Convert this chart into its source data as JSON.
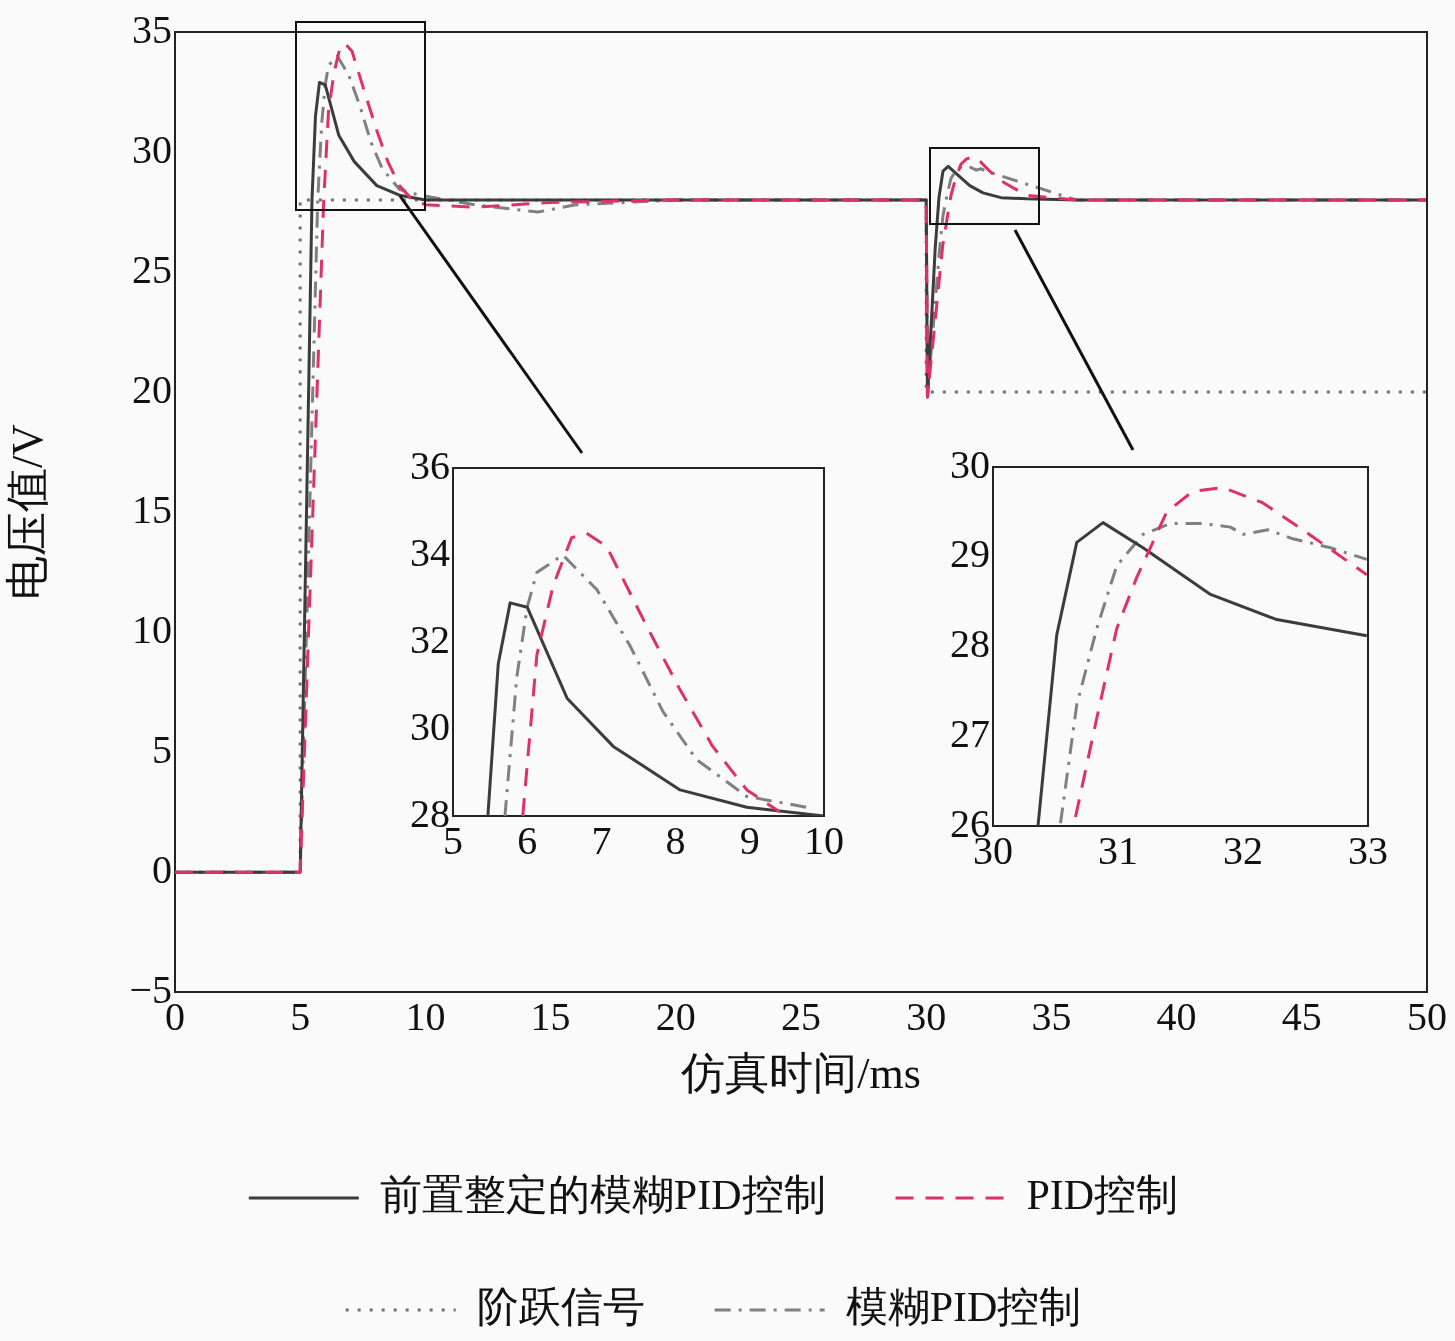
{
  "chart_data": [
    {
      "type": "line",
      "xlabel": "仿真时间/ms",
      "ylabel": "电压值/V",
      "xlim": [
        0,
        50
      ],
      "xticks": [
        0,
        5,
        10,
        15,
        20,
        25,
        30,
        35,
        40,
        45,
        50
      ],
      "ylim": [
        -5,
        35
      ],
      "yticks": [
        {
          "value": -5,
          "label": "−5"
        },
        0,
        5,
        10,
        15,
        20,
        25,
        30,
        35
      ],
      "grid": false,
      "legend": "bottom",
      "marker": "none",
      "series": [
        {
          "name": "前置整定的模糊PID控制",
          "color": "#3c3c3c",
          "line_style": "solid",
          "x": [
            0,
            5,
            5.47,
            5.61,
            5.77,
            6.0,
            6.54,
            7.16,
            8.06,
            8.96,
            10,
            20,
            30,
            30.05,
            30.36,
            30.51,
            30.67,
            30.88,
            31.2,
            31.74,
            32.27,
            32.99,
            34,
            36,
            50
          ],
          "values": [
            0,
            0,
            28,
            31.5,
            32.9,
            32.8,
            30.7,
            29.6,
            28.6,
            28.2,
            28,
            28,
            28,
            19.8,
            26,
            28.1,
            29.2,
            29.4,
            29.1,
            28.6,
            28.3,
            28.1,
            28.05,
            28,
            28
          ]
        },
        {
          "name": "PID控制",
          "color": "#e0306a",
          "line_style": "dashed",
          "x": [
            0,
            5,
            5.94,
            6.13,
            6.35,
            6.6,
            6.8,
            7.07,
            7.6,
            8.06,
            8.5,
            8.96,
            9.4,
            10,
            12,
            15,
            20,
            30,
            30.05,
            30.66,
            30.83,
            30.99,
            31.15,
            31.39,
            31.6,
            31.84,
            32.16,
            32.54,
            32.99,
            34,
            36,
            50
          ],
          "values": [
            0,
            0,
            28,
            31.7,
            33.3,
            34.4,
            34.5,
            34.2,
            32.4,
            30.9,
            29.6,
            28.6,
            28.1,
            27.8,
            27.7,
            27.9,
            28,
            28,
            19.8,
            26.1,
            27.2,
            28.2,
            28.8,
            29.5,
            29.7,
            29.8,
            29.6,
            29.2,
            28.8,
            28.2,
            28,
            28
          ]
        },
        {
          "name": "阶跃信号",
          "color": "#707070",
          "line_style": "dotted",
          "x": [
            0,
            5,
            5,
            30,
            30,
            50
          ],
          "values": [
            0,
            0,
            28,
            28,
            20,
            20
          ]
        },
        {
          "name": "模糊PID控制",
          "color": "#808080",
          "line_style": "dashdot",
          "x": [
            0,
            5,
            5.7,
            5.86,
            6.0,
            6.13,
            6.48,
            6.94,
            7.39,
            7.83,
            8.28,
            8.96,
            9.77,
            12,
            14.5,
            16,
            20,
            30,
            30.05,
            30.54,
            30.67,
            30.83,
            30.99,
            31.2,
            31.42,
            31.68,
            31.9,
            32.0,
            32.2,
            32.4,
            32.7,
            32.99,
            34.5,
            36,
            50
          ],
          "values": [
            0,
            0,
            28,
            31.2,
            32.8,
            33.6,
            34.0,
            33.2,
            31.9,
            30.4,
            29.3,
            28.45,
            28.2,
            27.8,
            27.5,
            27.8,
            28,
            28,
            19.8,
            26,
            27.35,
            28.2,
            28.9,
            29.25,
            29.4,
            29.4,
            29.3,
            29.25,
            29.3,
            29.2,
            29.1,
            29.0,
            28.5,
            28,
            28
          ]
        }
      ]
    },
    {
      "type": "line",
      "xlim": [
        5,
        10
      ],
      "xticks": [
        5,
        6,
        7,
        8,
        9,
        10
      ],
      "ylim": [
        28,
        36
      ],
      "yticks": [
        28,
        30,
        32,
        34,
        36
      ],
      "grid": false,
      "legend": false,
      "marker": "none",
      "series": [
        {
          "color": "#3c3c3c",
          "line_style": "solid",
          "x": [
            5.47,
            5.61,
            5.77,
            6.0,
            6.54,
            7.16,
            8.06,
            8.96,
            10
          ],
          "values": [
            28,
            31.5,
            32.9,
            32.8,
            30.7,
            29.6,
            28.6,
            28.2,
            28
          ]
        },
        {
          "color": "#e0306a",
          "line_style": "dashed",
          "x": [
            5.94,
            6.13,
            6.35,
            6.6,
            6.8,
            7.07,
            7.6,
            8.06,
            8.5,
            8.96,
            9.4
          ],
          "values": [
            28,
            31.7,
            33.3,
            34.4,
            34.5,
            34.2,
            32.4,
            30.9,
            29.6,
            28.6,
            28.1
          ]
        },
        {
          "color": "#808080",
          "line_style": "dashdot",
          "x": [
            5.7,
            5.86,
            6.0,
            6.13,
            6.48,
            6.94,
            7.39,
            7.83,
            8.28,
            8.96,
            9.77
          ],
          "values": [
            28,
            31.2,
            32.8,
            33.6,
            34.0,
            33.2,
            31.9,
            30.4,
            29.3,
            28.45,
            28.2
          ]
        }
      ]
    },
    {
      "type": "line",
      "xlim": [
        30,
        33
      ],
      "xticks": [
        30,
        31,
        32,
        33
      ],
      "ylim": [
        26,
        30
      ],
      "yticks": [
        26,
        27,
        28,
        29,
        30
      ],
      "grid": false,
      "legend": false,
      "marker": "none",
      "series": [
        {
          "color": "#3c3c3c",
          "line_style": "solid",
          "x": [
            30.36,
            30.51,
            30.67,
            30.88,
            31.2,
            31.74,
            32.27,
            32.99
          ],
          "values": [
            26,
            28.13,
            29.16,
            29.38,
            29.1,
            28.58,
            28.3,
            28.12
          ]
        },
        {
          "color": "#e0306a",
          "line_style": "dashed",
          "x": [
            30.66,
            30.83,
            30.99,
            31.15,
            31.39,
            31.6,
            31.84,
            32.16,
            32.54,
            32.99
          ],
          "values": [
            26.1,
            27.2,
            28.2,
            28.77,
            29.5,
            29.73,
            29.77,
            29.6,
            29.24,
            28.8
          ]
        },
        {
          "color": "#808080",
          "line_style": "dashdot",
          "x": [
            30.54,
            30.67,
            30.83,
            30.99,
            31.2,
            31.42,
            31.68,
            31.9,
            32.0,
            32.2,
            32.4,
            32.7,
            32.99
          ],
          "values": [
            26.03,
            27.35,
            28.2,
            28.9,
            29.25,
            29.37,
            29.37,
            29.33,
            29.25,
            29.3,
            29.2,
            29.1,
            28.97
          ]
        }
      ]
    }
  ]
}
